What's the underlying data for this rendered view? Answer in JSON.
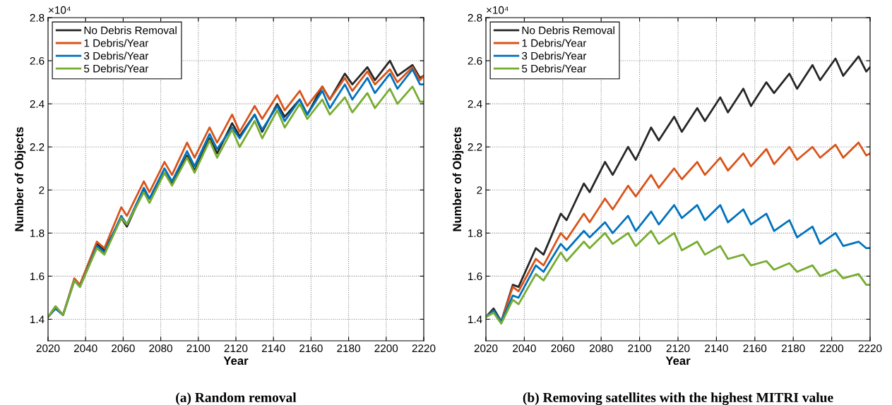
{
  "chart_data": [
    {
      "type": "line",
      "title": "(a) Random removal",
      "xlabel": "Year",
      "ylabel": "Number of Objects",
      "annotations": [
        "×10⁴"
      ],
      "x": [
        2020,
        2024,
        2028,
        2034,
        2037,
        2046,
        2050,
        2059,
        2062,
        2071,
        2074,
        2082,
        2086,
        2094,
        2098,
        2106,
        2110,
        2118,
        2122,
        2130,
        2134,
        2142,
        2146,
        2154,
        2158,
        2166,
        2170,
        2178,
        2182,
        2190,
        2194,
        2202,
        2206,
        2214,
        2218,
        2220
      ],
      "series": [
        {
          "name": "No Debris Removal",
          "color": "#262626",
          "values": [
            1.41,
            1.45,
            1.42,
            1.58,
            1.56,
            1.75,
            1.72,
            1.87,
            1.83,
            2.0,
            1.96,
            2.08,
            2.03,
            2.16,
            2.09,
            2.24,
            2.17,
            2.31,
            2.25,
            2.35,
            2.27,
            2.4,
            2.34,
            2.42,
            2.35,
            2.48,
            2.42,
            2.54,
            2.49,
            2.57,
            2.51,
            2.6,
            2.53,
            2.58,
            2.52,
            2.53
          ]
        },
        {
          "name": "1 Debris/Year",
          "color": "#d95319",
          "values": [
            1.41,
            1.46,
            1.42,
            1.59,
            1.56,
            1.76,
            1.73,
            1.92,
            1.88,
            2.04,
            1.99,
            2.13,
            2.07,
            2.22,
            2.15,
            2.29,
            2.22,
            2.35,
            2.27,
            2.39,
            2.33,
            2.44,
            2.37,
            2.46,
            2.39,
            2.48,
            2.42,
            2.52,
            2.46,
            2.55,
            2.49,
            2.56,
            2.5,
            2.57,
            2.51,
            2.53
          ]
        },
        {
          "name": "3 Debris/Year",
          "color": "#0072bd",
          "values": [
            1.41,
            1.45,
            1.42,
            1.58,
            1.55,
            1.74,
            1.71,
            1.88,
            1.84,
            2.01,
            1.96,
            2.1,
            2.04,
            2.18,
            2.11,
            2.26,
            2.19,
            2.29,
            2.24,
            2.35,
            2.28,
            2.39,
            2.32,
            2.42,
            2.35,
            2.46,
            2.38,
            2.49,
            2.42,
            2.52,
            2.45,
            2.54,
            2.47,
            2.56,
            2.49,
            2.49
          ]
        },
        {
          "name": "5 Debris/Year",
          "color": "#77ac30",
          "values": [
            1.41,
            1.46,
            1.42,
            1.58,
            1.55,
            1.73,
            1.7,
            1.87,
            1.84,
            1.99,
            1.94,
            2.08,
            2.02,
            2.15,
            2.08,
            2.23,
            2.15,
            2.28,
            2.2,
            2.32,
            2.24,
            2.37,
            2.29,
            2.4,
            2.33,
            2.42,
            2.35,
            2.43,
            2.36,
            2.45,
            2.38,
            2.47,
            2.4,
            2.48,
            2.41,
            2.41
          ]
        }
      ],
      "xlim": [
        2020,
        2220
      ],
      "xticks": [
        2020,
        2040,
        2060,
        2080,
        2100,
        2120,
        2140,
        2160,
        2180,
        2200,
        2220
      ],
      "ylim": [
        1.3,
        2.8
      ],
      "yticks": [
        1.4,
        1.6,
        1.8,
        2,
        2.2,
        2.4,
        2.6,
        2.8
      ],
      "grid": true,
      "legend": "top left",
      "line_style": "solid"
    },
    {
      "type": "line",
      "title": "(b) Removing satellites with the highest MITRI value",
      "xlabel": "Year",
      "ylabel": "Number of Objects",
      "annotations": [
        "×10⁴"
      ],
      "x": [
        2020,
        2024,
        2028,
        2034,
        2037,
        2046,
        2050,
        2059,
        2062,
        2071,
        2074,
        2082,
        2086,
        2094,
        2098,
        2106,
        2110,
        2118,
        2122,
        2130,
        2134,
        2142,
        2146,
        2154,
        2158,
        2166,
        2170,
        2178,
        2182,
        2190,
        2194,
        2202,
        2206,
        2214,
        2218,
        2220
      ],
      "series": [
        {
          "name": "No Debris Removal",
          "color": "#262626",
          "values": [
            1.41,
            1.45,
            1.39,
            1.56,
            1.55,
            1.73,
            1.7,
            1.89,
            1.86,
            2.03,
            1.99,
            2.13,
            2.07,
            2.2,
            2.14,
            2.29,
            2.23,
            2.34,
            2.27,
            2.38,
            2.32,
            2.43,
            2.36,
            2.47,
            2.39,
            2.5,
            2.45,
            2.54,
            2.47,
            2.58,
            2.51,
            2.61,
            2.53,
            2.62,
            2.55,
            2.57
          ]
        },
        {
          "name": "1 Debris/Year",
          "color": "#d95319",
          "values": [
            1.41,
            1.44,
            1.39,
            1.55,
            1.53,
            1.68,
            1.65,
            1.8,
            1.77,
            1.89,
            1.85,
            1.96,
            1.91,
            2.02,
            1.97,
            2.07,
            2.01,
            2.1,
            2.05,
            2.13,
            2.07,
            2.15,
            2.09,
            2.17,
            2.11,
            2.19,
            2.12,
            2.2,
            2.14,
            2.2,
            2.15,
            2.21,
            2.15,
            2.22,
            2.16,
            2.17
          ]
        },
        {
          "name": "3 Debris/Year",
          "color": "#0072bd",
          "values": [
            1.41,
            1.44,
            1.39,
            1.51,
            1.5,
            1.65,
            1.62,
            1.75,
            1.72,
            1.81,
            1.78,
            1.85,
            1.8,
            1.88,
            1.81,
            1.9,
            1.84,
            1.93,
            1.87,
            1.93,
            1.86,
            1.93,
            1.85,
            1.91,
            1.84,
            1.89,
            1.81,
            1.86,
            1.78,
            1.83,
            1.75,
            1.8,
            1.74,
            1.76,
            1.73,
            1.73
          ]
        },
        {
          "name": "5 Debris/Year",
          "color": "#77ac30",
          "values": [
            1.41,
            1.43,
            1.38,
            1.49,
            1.47,
            1.61,
            1.58,
            1.71,
            1.67,
            1.76,
            1.73,
            1.8,
            1.75,
            1.8,
            1.74,
            1.81,
            1.75,
            1.8,
            1.72,
            1.76,
            1.7,
            1.74,
            1.68,
            1.7,
            1.65,
            1.67,
            1.63,
            1.66,
            1.62,
            1.65,
            1.6,
            1.63,
            1.59,
            1.61,
            1.56,
            1.56
          ]
        }
      ],
      "xlim": [
        2020,
        2220
      ],
      "xticks": [
        2020,
        2040,
        2060,
        2080,
        2100,
        2120,
        2140,
        2160,
        2180,
        2200,
        2220
      ],
      "ylim": [
        1.3,
        2.8
      ],
      "yticks": [
        1.4,
        1.6,
        1.8,
        2,
        2.2,
        2.4,
        2.6,
        2.8
      ],
      "grid": true,
      "legend": "top left",
      "line_style": "solid"
    }
  ]
}
